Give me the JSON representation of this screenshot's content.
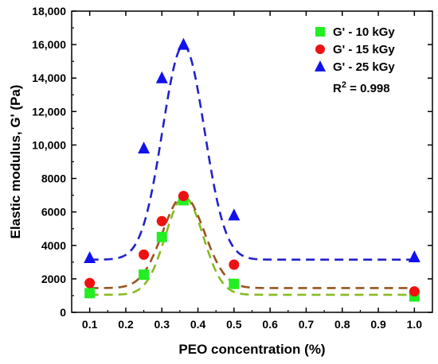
{
  "chart_data": {
    "type": "scatter",
    "xlabel": "PEO concentration (%)",
    "ylabel": "Elastic modulus, G' (Pa)",
    "xlim": [
      0.05,
      1.05
    ],
    "ylim": [
      0,
      18000
    ],
    "xticks": [
      0.1,
      0.2,
      0.3,
      0.4,
      0.5,
      0.6,
      0.7,
      0.8,
      0.9,
      1.0
    ],
    "xtick_labels": [
      "0.1",
      "0.2",
      "0.3",
      "0.4",
      "0.5",
      "0.6",
      "0.7",
      "0.8",
      "0.9",
      "1.0"
    ],
    "yticks": [
      0,
      2000,
      4000,
      6000,
      8000,
      10000,
      12000,
      14000,
      16000,
      18000
    ],
    "ytick_labels": [
      "0",
      "2000",
      "4000",
      "6000",
      "8000",
      "10,000",
      "12,000",
      "14,000",
      "16,000",
      "18,000"
    ],
    "legend_position": "top-right",
    "annotation": {
      "prefix": "R",
      "superscript": "2",
      "suffix": " =  0.998"
    },
    "series": [
      {
        "name": "G' - 10 kGy",
        "marker": "square",
        "color": "#22ee22",
        "fit_color": "#88bb22",
        "x": [
          0.1,
          0.25,
          0.3,
          0.36,
          0.5,
          1.0
        ],
        "y": [
          1150,
          2250,
          4500,
          6700,
          1700,
          950
        ],
        "fit": {
          "base": 1050,
          "amplitude": 5850,
          "center": 0.362,
          "width": 0.052
        }
      },
      {
        "name": "G' - 15 kGy",
        "marker": "circle",
        "color": "#ee1111",
        "fit_color": "#995522",
        "x": [
          0.1,
          0.25,
          0.3,
          0.36,
          0.5,
          1.0
        ],
        "y": [
          1750,
          3450,
          5450,
          6950,
          2850,
          1250
        ],
        "fit": {
          "base": 1450,
          "amplitude": 5500,
          "center": 0.36,
          "width": 0.058
        }
      },
      {
        "name": "G' - 25 kGy",
        "marker": "triangle",
        "color": "#1111ee",
        "fit_color": "#2222cc",
        "x": [
          0.1,
          0.25,
          0.3,
          0.36,
          0.5,
          1.0
        ],
        "y": [
          3250,
          9800,
          14000,
          16000,
          5800,
          3300
        ],
        "fit": {
          "base": 3150,
          "amplitude": 12800,
          "center": 0.36,
          "width": 0.058
        }
      }
    ]
  }
}
